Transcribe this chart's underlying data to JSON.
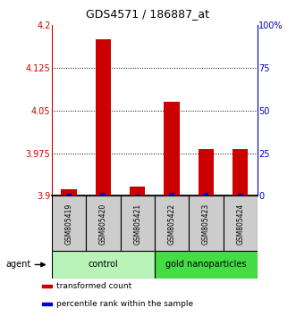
{
  "title": "GDS4571 / 186887_at",
  "samples": [
    "GSM805419",
    "GSM805420",
    "GSM805421",
    "GSM805422",
    "GSM805423",
    "GSM805424"
  ],
  "red_values": [
    3.912,
    4.175,
    3.916,
    4.065,
    3.982,
    3.983
  ],
  "blue_values": [
    1.5,
    2.0,
    1.0,
    2.0,
    2.0,
    1.5
  ],
  "ylim_left": [
    3.9,
    4.2
  ],
  "ylim_right": [
    0,
    100
  ],
  "yticks_left": [
    3.9,
    3.975,
    4.05,
    4.125,
    4.2
  ],
  "yticks_right": [
    0,
    25,
    50,
    75,
    100
  ],
  "ytick_labels_left": [
    "3.9",
    "3.975",
    "4.05",
    "4.125",
    "4.2"
  ],
  "ytick_labels_right": [
    "0",
    "25",
    "50",
    "75",
    "100%"
  ],
  "groups": [
    {
      "label": "control",
      "samples": [
        0,
        1,
        2
      ],
      "color": "#b8f4b8"
    },
    {
      "label": "gold nanoparticles",
      "samples": [
        3,
        4,
        5
      ],
      "color": "#44dd44"
    }
  ],
  "group_row_label": "agent",
  "legend_items": [
    {
      "color": "#cc0000",
      "label": "transformed count"
    },
    {
      "color": "#0000cc",
      "label": "percentile rank within the sample"
    }
  ],
  "bar_width": 0.45,
  "red_color": "#cc0000",
  "blue_color": "#0000cc",
  "axis_left_color": "#cc0000",
  "axis_right_color": "#0000bb",
  "bg_color": "#ffffff",
  "sample_box_color": "#cccccc",
  "dotted_grid_color": "#000000"
}
